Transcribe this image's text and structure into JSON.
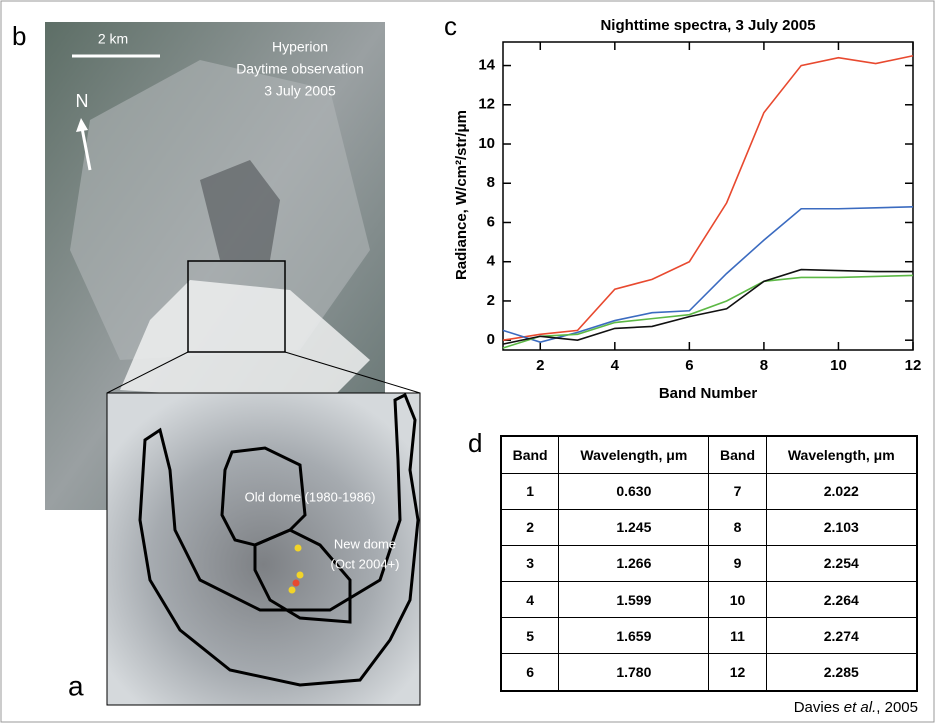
{
  "panel_labels": {
    "b": "b",
    "a": "a",
    "c": "c",
    "d": "d"
  },
  "image": {
    "scale": "2 km",
    "north": "N",
    "caption": [
      "Hyperion",
      "Daytime observation",
      "3 July 2005"
    ],
    "old_dome": "Old dome (1980-1986)",
    "new_dome": [
      "New dome",
      "(Oct 2004+)"
    ]
  },
  "chart_data": {
    "type": "line",
    "title": "Nighttime spectra, 3 July 2005",
    "x_label": "Band Number",
    "y_label": "Radiance, W/cm²/str/μm",
    "x": [
      1,
      2,
      3,
      4,
      5,
      6,
      7,
      8,
      9,
      10,
      11,
      12
    ],
    "xlim": [
      1,
      12
    ],
    "xticks": [
      2,
      4,
      6,
      8,
      10,
      12
    ],
    "ylim": [
      -0.5,
      15.2
    ],
    "yticks": [
      0,
      2,
      4,
      6,
      8,
      10,
      12,
      14
    ],
    "series": [
      {
        "color": "#e8492f",
        "values": [
          0.0,
          0.3,
          0.5,
          2.6,
          3.1,
          4.0,
          7.0,
          11.6,
          14.0,
          14.4,
          14.1,
          14.5
        ]
      },
      {
        "color": "#3b6bc0",
        "values": [
          0.5,
          -0.1,
          0.4,
          1.0,
          1.4,
          1.5,
          3.4,
          5.1,
          6.7,
          6.7,
          6.75,
          6.8
        ]
      },
      {
        "color": "#5cb845",
        "values": [
          -0.4,
          0.2,
          0.3,
          0.9,
          1.1,
          1.3,
          2.0,
          3.0,
          3.2,
          3.2,
          3.25,
          3.3
        ]
      },
      {
        "color": "#111111",
        "values": [
          -0.2,
          0.2,
          0.0,
          0.6,
          0.7,
          1.2,
          1.6,
          3.0,
          3.6,
          3.55,
          3.5,
          3.5
        ]
      }
    ]
  },
  "table": {
    "header": [
      "Band",
      "Wavelength, μm",
      "Band",
      "Wavelength, μm"
    ],
    "rows": [
      [
        "1",
        "0.630",
        "7",
        "2.022"
      ],
      [
        "2",
        "1.245",
        "8",
        "2.103"
      ],
      [
        "3",
        "1.266",
        "9",
        "2.254"
      ],
      [
        "4",
        "1.599",
        "10",
        "2.264"
      ],
      [
        "5",
        "1.659",
        "11",
        "2.274"
      ],
      [
        "6",
        "1.780",
        "12",
        "2.285"
      ]
    ]
  },
  "credit": {
    "author": "Davies",
    "etal": "et al.",
    "year": ", 2005"
  }
}
